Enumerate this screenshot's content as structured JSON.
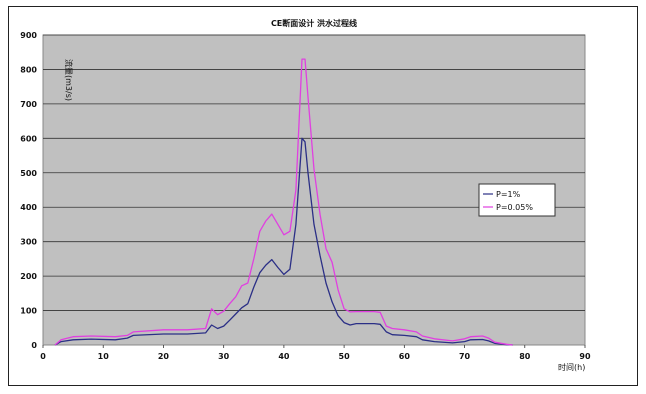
{
  "chart_data": {
    "type": "line",
    "title": "CE断面设计 洪水过程线",
    "ylabel": "流量(m3/s)",
    "xlabel": "时间(h)",
    "xlim": [
      0,
      90
    ],
    "ylim": [
      0,
      900
    ],
    "x_ticks": [
      "0",
      "10",
      "20",
      "30",
      "40",
      "50",
      "60",
      "70",
      "80",
      "90"
    ],
    "y_ticks": [
      "0",
      "100",
      "200",
      "300",
      "400",
      "500",
      "600",
      "700",
      "800",
      "900"
    ],
    "grid": true,
    "legend": "right-center",
    "series": [
      {
        "name": "P=1%",
        "color": "#2b2f86",
        "points": [
          [
            2,
            0
          ],
          [
            3,
            10
          ],
          [
            5,
            15
          ],
          [
            8,
            17
          ],
          [
            12,
            15
          ],
          [
            14,
            20
          ],
          [
            15,
            28
          ],
          [
            20,
            32
          ],
          [
            24,
            32
          ],
          [
            27,
            35
          ],
          [
            28,
            58
          ],
          [
            29,
            48
          ],
          [
            30,
            55
          ],
          [
            31,
            72
          ],
          [
            32,
            90
          ],
          [
            33,
            108
          ],
          [
            34,
            120
          ],
          [
            35,
            168
          ],
          [
            36,
            210
          ],
          [
            37,
            232
          ],
          [
            38,
            248
          ],
          [
            39,
            225
          ],
          [
            40,
            205
          ],
          [
            41,
            220
          ],
          [
            42,
            350
          ],
          [
            43,
            600
          ],
          [
            43.5,
            590
          ],
          [
            44,
            500
          ],
          [
            45,
            350
          ],
          [
            46,
            260
          ],
          [
            47,
            180
          ],
          [
            48,
            125
          ],
          [
            49,
            85
          ],
          [
            50,
            65
          ],
          [
            51,
            58
          ],
          [
            52,
            62
          ],
          [
            53,
            62
          ],
          [
            55,
            62
          ],
          [
            56,
            60
          ],
          [
            57,
            38
          ],
          [
            58,
            30
          ],
          [
            60,
            28
          ],
          [
            62,
            24
          ],
          [
            63,
            15
          ],
          [
            65,
            10
          ],
          [
            68,
            6
          ],
          [
            70,
            10
          ],
          [
            71,
            15
          ],
          [
            73,
            16
          ],
          [
            74,
            12
          ],
          [
            75,
            5
          ],
          [
            77,
            1
          ],
          [
            78,
            0
          ]
        ]
      },
      {
        "name": "P=0.05%",
        "color": "#e040e0",
        "points": [
          [
            2,
            0
          ],
          [
            3,
            15
          ],
          [
            5,
            24
          ],
          [
            8,
            26
          ],
          [
            12,
            24
          ],
          [
            14,
            28
          ],
          [
            15,
            38
          ],
          [
            20,
            44
          ],
          [
            24,
            44
          ],
          [
            27,
            48
          ],
          [
            28,
            105
          ],
          [
            29,
            88
          ],
          [
            30,
            98
          ],
          [
            31,
            120
          ],
          [
            32,
            140
          ],
          [
            33,
            172
          ],
          [
            34,
            180
          ],
          [
            35,
            250
          ],
          [
            36,
            330
          ],
          [
            37,
            360
          ],
          [
            38,
            380
          ],
          [
            39,
            350
          ],
          [
            40,
            320
          ],
          [
            41,
            330
          ],
          [
            42,
            450
          ],
          [
            43,
            830
          ],
          [
            43.5,
            830
          ],
          [
            44,
            720
          ],
          [
            45,
            510
          ],
          [
            46,
            380
          ],
          [
            47,
            280
          ],
          [
            48,
            240
          ],
          [
            49,
            160
          ],
          [
            50,
            105
          ],
          [
            51,
            96
          ],
          [
            52,
            97
          ],
          [
            53,
            97
          ],
          [
            55,
            97
          ],
          [
            56,
            95
          ],
          [
            57,
            55
          ],
          [
            58,
            48
          ],
          [
            60,
            44
          ],
          [
            62,
            38
          ],
          [
            63,
            26
          ],
          [
            65,
            18
          ],
          [
            68,
            12
          ],
          [
            70,
            18
          ],
          [
            71,
            24
          ],
          [
            73,
            26
          ],
          [
            74,
            20
          ],
          [
            75,
            8
          ],
          [
            77,
            2
          ],
          [
            78,
            0
          ]
        ]
      }
    ]
  }
}
